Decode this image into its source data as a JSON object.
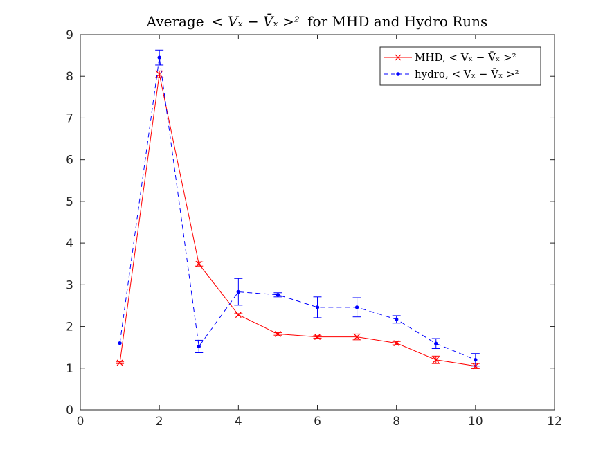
{
  "chart_data": {
    "type": "line",
    "title": "Average < V_x − V̄_x >² for MHD and Hydro Runs",
    "title_parts": {
      "prefix": "Average",
      "math": "< Vₓ − V̄ₓ >²",
      "suffix": "for MHD and Hydro Runs"
    },
    "xlabel": "",
    "ylabel": "",
    "xlim": [
      0,
      12
    ],
    "ylim": [
      0,
      9
    ],
    "xticks": [
      0,
      2,
      4,
      6,
      8,
      10,
      12
    ],
    "yticks": [
      0,
      1,
      2,
      3,
      4,
      5,
      6,
      7,
      8,
      9
    ],
    "grid": false,
    "legend_position": "top-right",
    "series": [
      {
        "name": "MHD, < Vₓ − V̄ₓ >²",
        "color": "#ff0000",
        "line_style": "solid",
        "marker": "x",
        "x": [
          1,
          2,
          3,
          4,
          5,
          6,
          7,
          8,
          9,
          10
        ],
        "y": [
          1.13,
          8.05,
          3.5,
          2.28,
          1.82,
          1.75,
          1.75,
          1.6,
          1.2,
          1.05
        ],
        "error": [
          0.02,
          0.08,
          0.05,
          0.03,
          0.03,
          0.03,
          0.07,
          0.04,
          0.09,
          0.06
        ]
      },
      {
        "name": "hydro, < Vₓ − V̄ₓ >²",
        "color": "#0000ff",
        "line_style": "dashed",
        "marker": "point",
        "x": [
          1,
          2,
          3,
          4,
          5,
          6,
          7,
          8,
          9,
          10
        ],
        "y": [
          1.6,
          8.45,
          1.52,
          2.83,
          2.76,
          2.46,
          2.46,
          2.17,
          1.59,
          1.2
        ],
        "error": [
          0.0,
          0.18,
          0.15,
          0.32,
          0.05,
          0.25,
          0.23,
          0.09,
          0.12,
          0.15
        ]
      }
    ]
  }
}
